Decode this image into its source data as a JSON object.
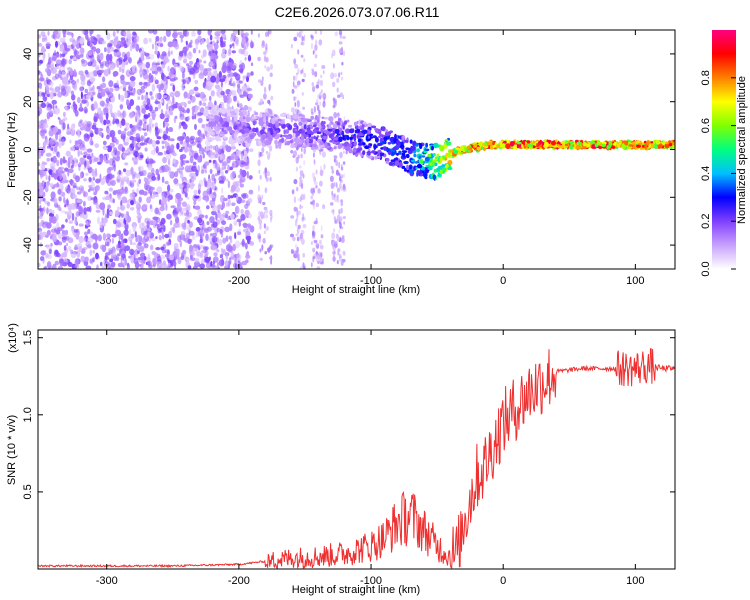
{
  "title": "C2E6.2026.073.07.06.R11",
  "chart_data": [
    {
      "type": "heatmap",
      "xlabel": "Height of straight line (km)",
      "ylabel": "Frequency (Hz)",
      "xlim": [
        -352,
        130
      ],
      "ylim": [
        -50,
        50
      ],
      "xticks": [
        -300,
        -200,
        -100,
        0,
        100
      ],
      "yticks": [
        -40,
        -20,
        0,
        20,
        40
      ],
      "colorbar": {
        "label": "Normalized spectral amplitude",
        "range": [
          0,
          1
        ],
        "ticks": [
          0.0,
          0.2,
          0.4,
          0.6,
          0.8
        ],
        "tick_labels": [
          "0.0",
          "0.2",
          "0.4",
          "0.6",
          "0.8"
        ],
        "colormap": [
          "#ffffff",
          "#c8a0ff",
          "#8040ff",
          "#0000ff",
          "#00c0ff",
          "#00ff80",
          "#80ff00",
          "#ffff00",
          "#ff8000",
          "#ff0000",
          "#ff0080"
        ]
      },
      "ridge": {
        "x": [
          -230,
          -210,
          -190,
          -170,
          -150,
          -130,
          -110,
          -90,
          -75,
          -60,
          -50,
          -40,
          -30,
          -20,
          -10,
          0,
          20,
          60,
          100,
          130
        ],
        "frequency": [
          12,
          10,
          9,
          8,
          7,
          6,
          5,
          2,
          -2,
          -5,
          -5,
          -2,
          0,
          1,
          2,
          2,
          2,
          2,
          2,
          2
        ],
        "amplitude": [
          0.12,
          0.2,
          0.22,
          0.24,
          0.26,
          0.28,
          0.32,
          0.38,
          0.4,
          0.55,
          0.7,
          0.8,
          0.85,
          0.9,
          0.92,
          0.95,
          0.95,
          0.93,
          0.9,
          0.9
        ]
      }
    },
    {
      "type": "line",
      "xlabel": "Height of straight line (km)",
      "ylabel": "SNR (10 * v/v)",
      "y_multiplier": "(x10⁴)",
      "xlim": [
        -352,
        130
      ],
      "ylim": [
        0,
        1.55
      ],
      "xticks": [
        -300,
        -200,
        -100,
        0,
        100
      ],
      "yticks": [
        0.5,
        1.0,
        1.5
      ],
      "ytick_labels": [
        "0.5",
        "1.0",
        "1.5"
      ],
      "series": [
        {
          "color": "#ee3030",
          "x": [
            -352,
            -300,
            -250,
            -200,
            -180,
            -160,
            -140,
            -120,
            -100,
            -90,
            -80,
            -70,
            -60,
            -50,
            -40,
            -35,
            -30,
            -25,
            -20,
            -15,
            -10,
            -5,
            0,
            10,
            20,
            30,
            40,
            60,
            80,
            90,
            100,
            110,
            120,
            130
          ],
          "y": [
            0.02,
            0.02,
            0.02,
            0.03,
            0.05,
            0.07,
            0.08,
            0.1,
            0.15,
            0.2,
            0.3,
            0.35,
            0.25,
            0.15,
            0.08,
            0.1,
            0.3,
            0.45,
            0.6,
            0.65,
            0.75,
            0.85,
            0.95,
            1.05,
            1.15,
            1.22,
            1.28,
            1.3,
            1.3,
            1.3,
            1.3,
            1.32,
            1.3,
            1.3
          ]
        }
      ]
    }
  ]
}
